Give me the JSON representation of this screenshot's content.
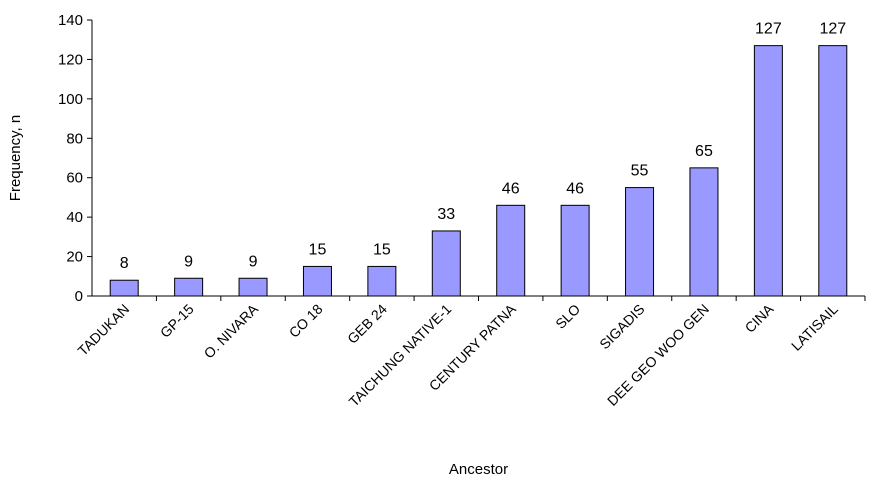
{
  "chart_data": {
    "type": "bar",
    "title": "",
    "xlabel": "Ancestor",
    "ylabel": "Frequency, n",
    "ylim": [
      0,
      140
    ],
    "yticks": [
      0,
      20,
      40,
      60,
      80,
      100,
      120,
      140
    ],
    "categories": [
      "TADUKAN",
      "GP-15",
      "O. NIVARA",
      "CO 18",
      "GEB 24",
      "TAICHUNG NATIVE-1",
      "CENTURY PATNA",
      "SLO",
      "SIGADIS",
      "DEE GEO WOO GEN",
      "CINA",
      "LATISAIL"
    ],
    "values": [
      8,
      9,
      9,
      15,
      15,
      33,
      46,
      46,
      55,
      65,
      127,
      127
    ],
    "grid": false,
    "legend": "none",
    "colors": {
      "bar_fill": "#9999ff",
      "bar_stroke": "#000000",
      "axis": "#000000"
    }
  }
}
